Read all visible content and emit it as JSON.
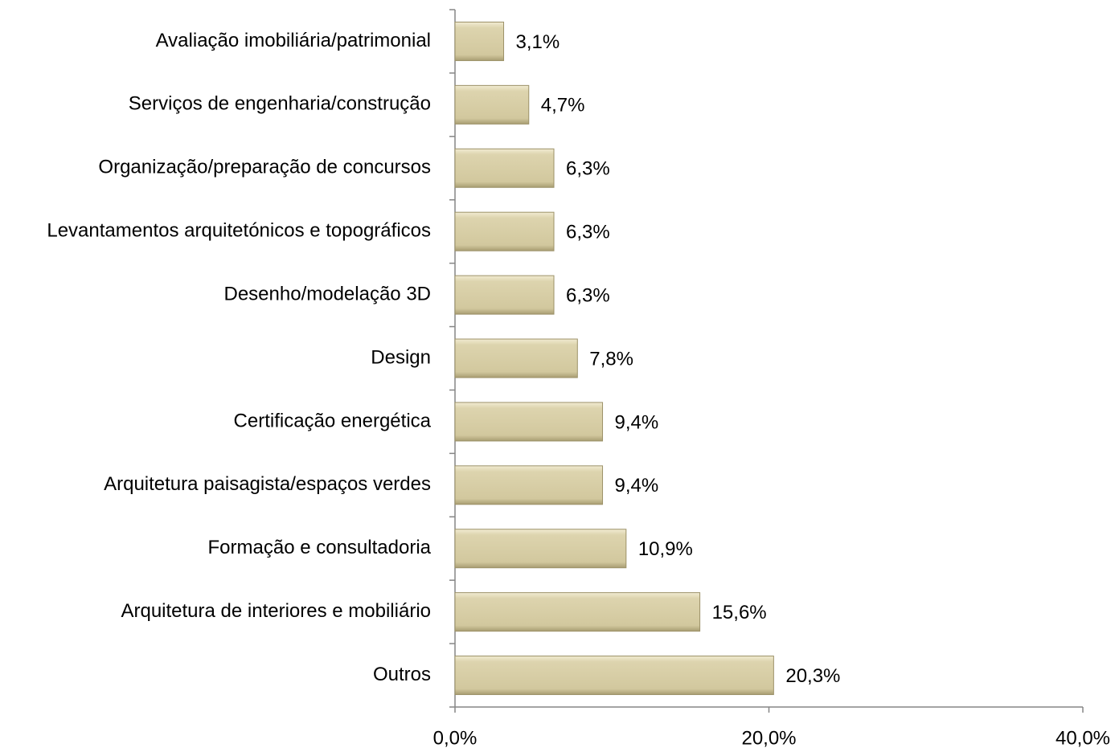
{
  "chart_data": {
    "type": "bar",
    "orientation": "horizontal",
    "categories": [
      "Avaliação imobiliária/patrimonial",
      "Serviços de engenharia/construção",
      "Organização/preparação de concursos",
      "Levantamentos arquitetónicos e topográficos",
      "Desenho/modelação 3D",
      "Design",
      "Certificação energética",
      "Arquitetura paisagista/espaços verdes",
      "Formação e consultadoria",
      "Arquitetura de interiores e mobiliário",
      "Outros"
    ],
    "values": [
      3.1,
      4.7,
      6.3,
      6.3,
      6.3,
      7.8,
      9.4,
      9.4,
      10.9,
      15.6,
      20.3
    ],
    "value_labels": [
      "3,1%",
      "4,7%",
      "6,3%",
      "6,3%",
      "6,3%",
      "7,8%",
      "9,4%",
      "9,4%",
      "10,9%",
      "15,6%",
      "20,3%"
    ],
    "color": "#d9d0a8",
    "xlim": [
      0,
      40
    ],
    "xticks": [
      {
        "value": 0,
        "label": "0,0%"
      },
      {
        "value": 20,
        "label": "20,0%"
      },
      {
        "value": 40,
        "label": "40,0%"
      }
    ],
    "grid": false
  }
}
